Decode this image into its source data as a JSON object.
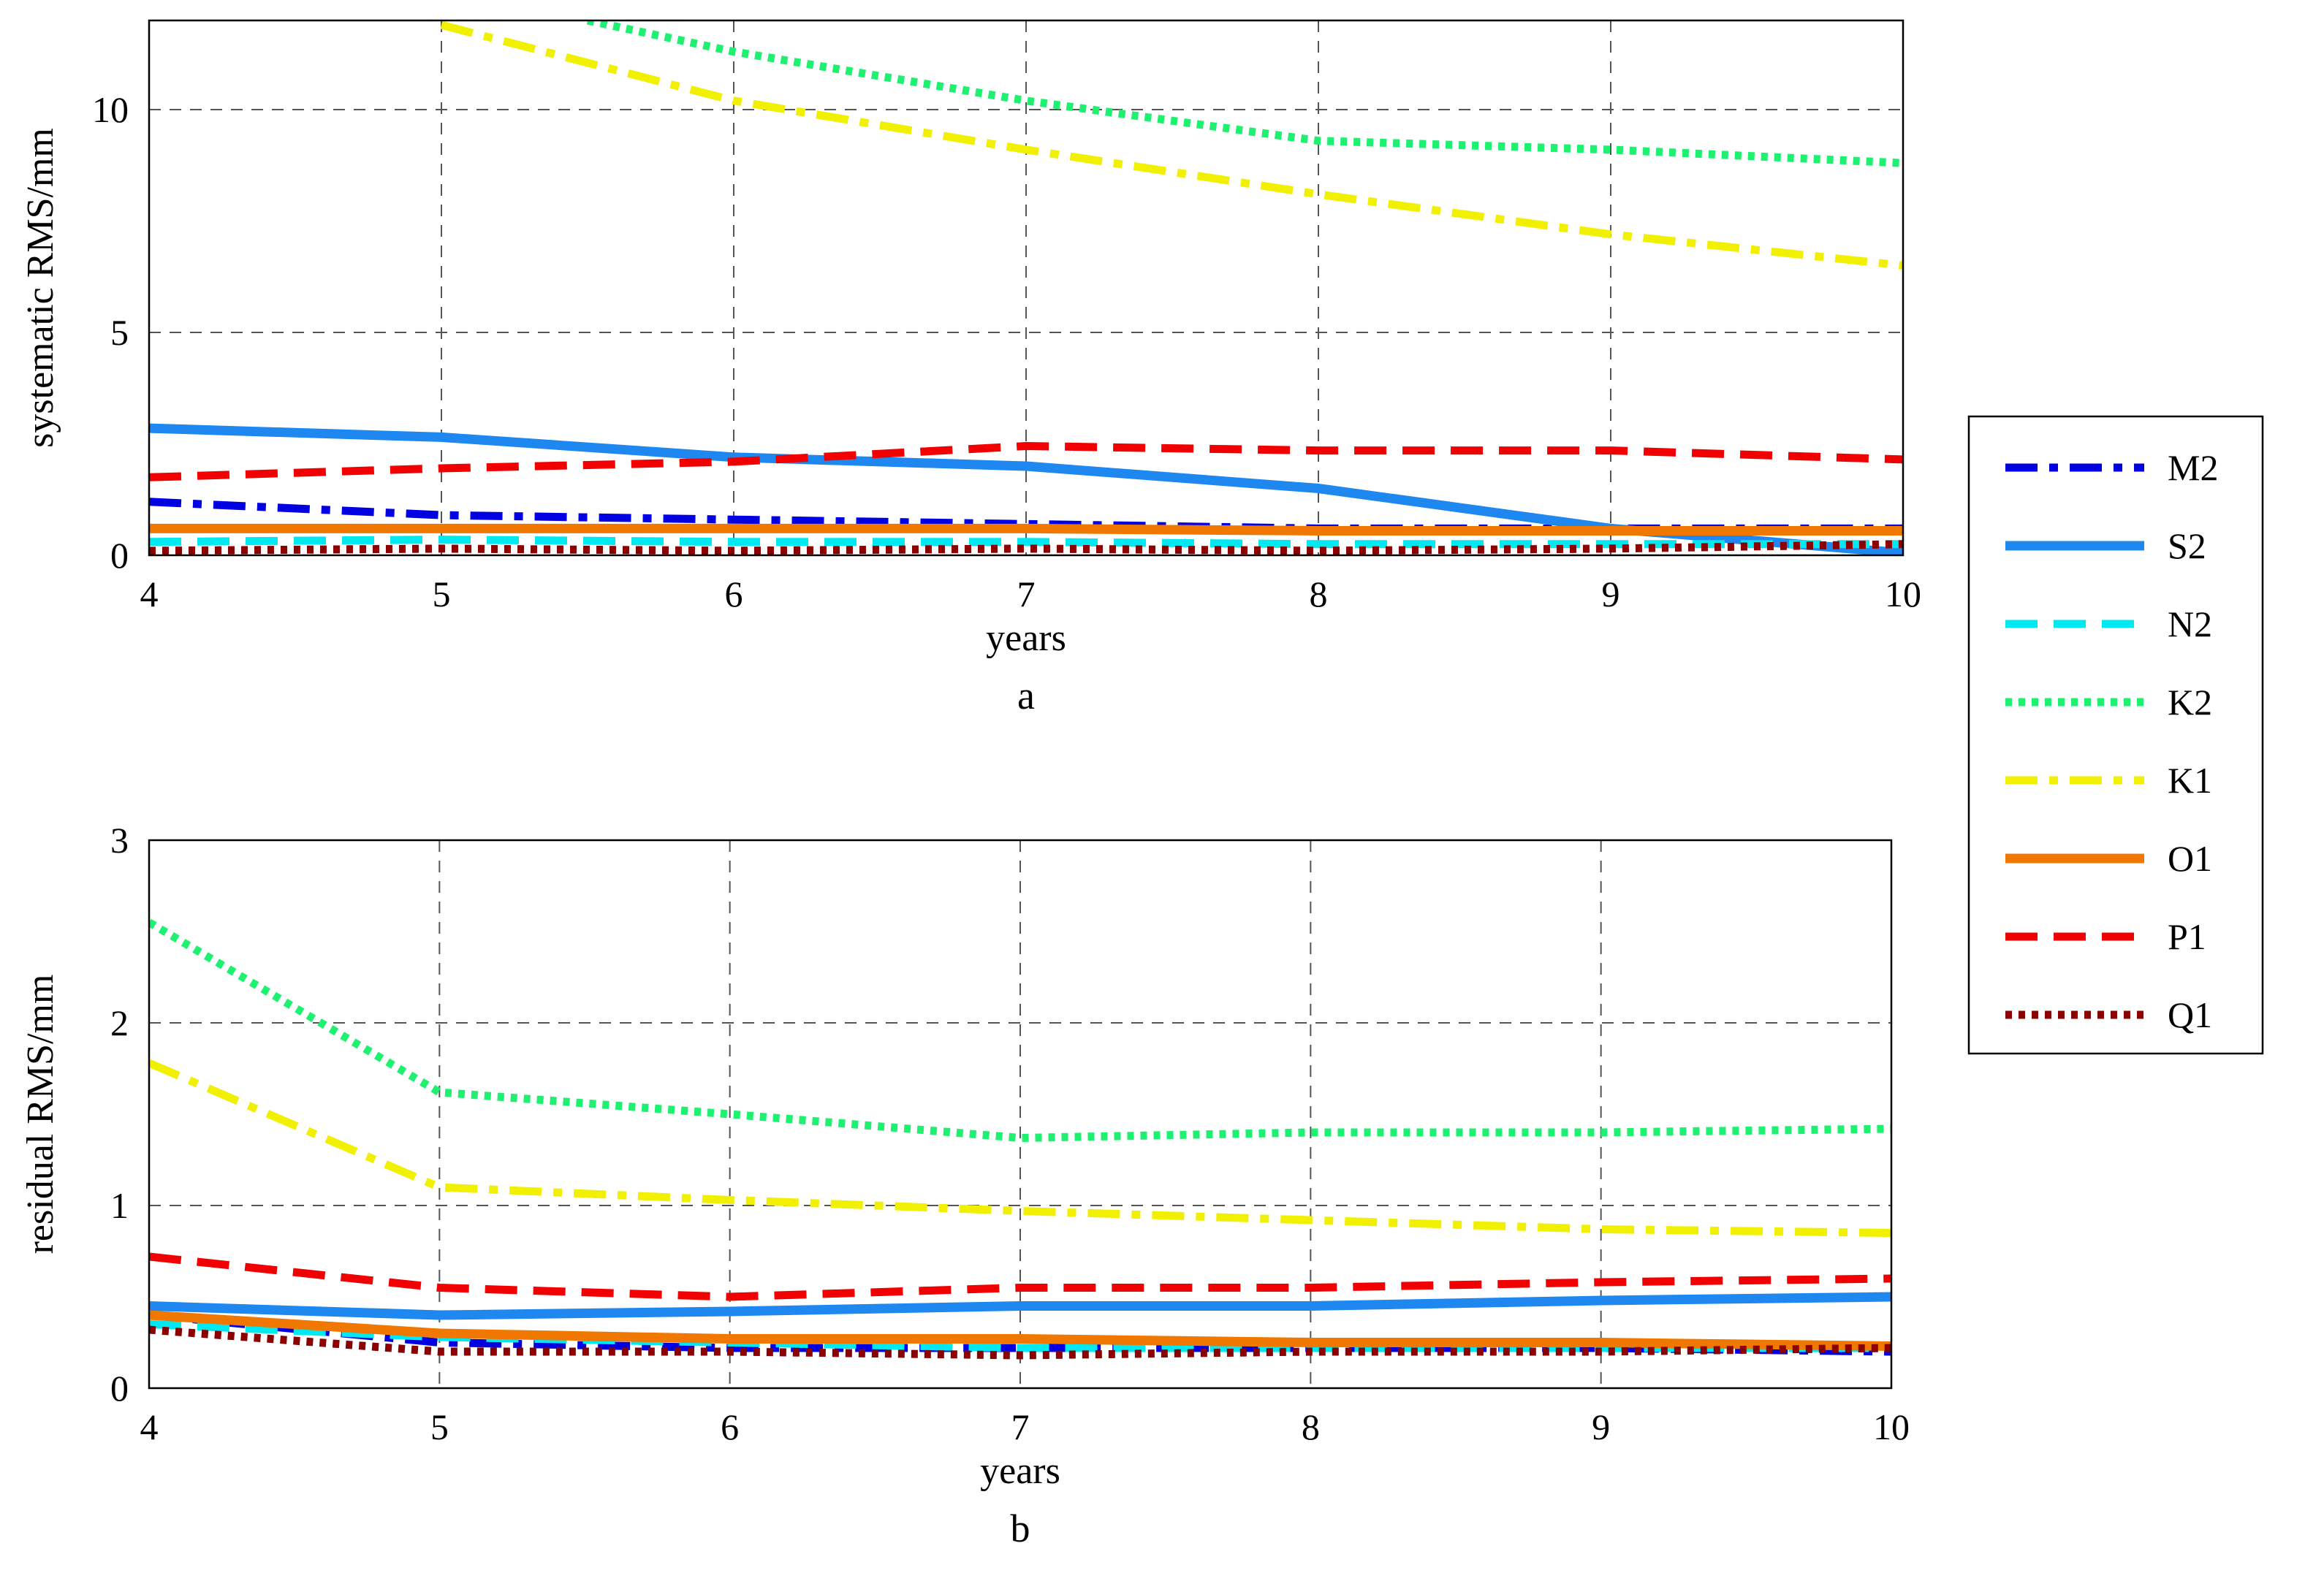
{
  "chart_data": [
    {
      "type": "line",
      "panel_label": "a",
      "xlabel": "years",
      "ylabel": "systematic RMS/mm",
      "xlim": [
        4,
        10
      ],
      "ylim": [
        0,
        12
      ],
      "xticks": [
        "4",
        "5",
        "6",
        "7",
        "8",
        "9",
        "10"
      ],
      "yticks": [
        "0",
        "5",
        "10"
      ],
      "x": [
        4,
        5,
        6,
        7,
        8,
        9,
        10
      ],
      "series": [
        {
          "name": "M2",
          "values": [
            1.2,
            0.9,
            0.8,
            0.7,
            0.6,
            0.6,
            0.6
          ]
        },
        {
          "name": "S2",
          "values": [
            2.85,
            2.65,
            2.2,
            2.0,
            1.5,
            0.6,
            0.05
          ]
        },
        {
          "name": "N2",
          "values": [
            0.3,
            0.35,
            0.3,
            0.3,
            0.25,
            0.25,
            0.25
          ]
        },
        {
          "name": "K2",
          "x": [
            5.5,
            6,
            7,
            8,
            9,
            10
          ],
          "values": [
            12.0,
            11.3,
            10.2,
            9.3,
            9.1,
            8.8
          ]
        },
        {
          "name": "K1",
          "x": [
            5,
            6,
            7,
            8,
            9,
            10
          ],
          "values": [
            11.9,
            10.2,
            9.1,
            8.1,
            7.2,
            6.5
          ]
        },
        {
          "name": "O1",
          "values": [
            0.6,
            0.6,
            0.6,
            0.6,
            0.55,
            0.55,
            0.55
          ]
        },
        {
          "name": "P1",
          "values": [
            1.75,
            1.95,
            2.1,
            2.45,
            2.35,
            2.35,
            2.15
          ]
        },
        {
          "name": "Q1",
          "values": [
            0.1,
            0.15,
            0.1,
            0.15,
            0.1,
            0.15,
            0.25
          ]
        }
      ]
    },
    {
      "type": "line",
      "panel_label": "b",
      "xlabel": "years",
      "ylabel": "residual RMS/mm",
      "xlim": [
        4,
        10
      ],
      "ylim": [
        0,
        3
      ],
      "xticks": [
        "4",
        "5",
        "6",
        "7",
        "8",
        "9",
        "10"
      ],
      "yticks": [
        "0",
        "1",
        "2",
        "3"
      ],
      "x": [
        4,
        5,
        6,
        7,
        8,
        9,
        10
      ],
      "series": [
        {
          "name": "M2",
          "values": [
            0.4,
            0.25,
            0.22,
            0.22,
            0.22,
            0.22,
            0.2
          ]
        },
        {
          "name": "S2",
          "values": [
            0.45,
            0.4,
            0.42,
            0.45,
            0.45,
            0.48,
            0.5
          ]
        },
        {
          "name": "N2",
          "values": [
            0.35,
            0.28,
            0.25,
            0.22,
            0.22,
            0.22,
            0.22
          ]
        },
        {
          "name": "K2",
          "values": [
            2.55,
            1.62,
            1.5,
            1.37,
            1.4,
            1.4,
            1.42
          ]
        },
        {
          "name": "K1",
          "values": [
            1.78,
            1.1,
            1.03,
            0.97,
            0.92,
            0.87,
            0.85
          ]
        },
        {
          "name": "O1",
          "values": [
            0.4,
            0.3,
            0.27,
            0.27,
            0.25,
            0.25,
            0.23
          ]
        },
        {
          "name": "P1",
          "values": [
            0.72,
            0.55,
            0.5,
            0.55,
            0.55,
            0.58,
            0.6
          ]
        },
        {
          "name": "Q1",
          "values": [
            0.32,
            0.2,
            0.2,
            0.18,
            0.2,
            0.2,
            0.22
          ]
        }
      ]
    }
  ],
  "legend": {
    "placement": "right",
    "entries": [
      {
        "name": "M2",
        "color": "#0000e0",
        "style": "dashdot"
      },
      {
        "name": "S2",
        "color": "#1e88f0",
        "style": "solid"
      },
      {
        "name": "N2",
        "color": "#00e8f0",
        "style": "dashed"
      },
      {
        "name": "K2",
        "color": "#1ef070",
        "style": "dotted"
      },
      {
        "name": "K1",
        "color": "#f0f000",
        "style": "dashdot"
      },
      {
        "name": "O1",
        "color": "#f07800",
        "style": "solid"
      },
      {
        "name": "P1",
        "color": "#f00000",
        "style": "dashed"
      },
      {
        "name": "Q1",
        "color": "#8b0000",
        "style": "dotted"
      }
    ]
  }
}
